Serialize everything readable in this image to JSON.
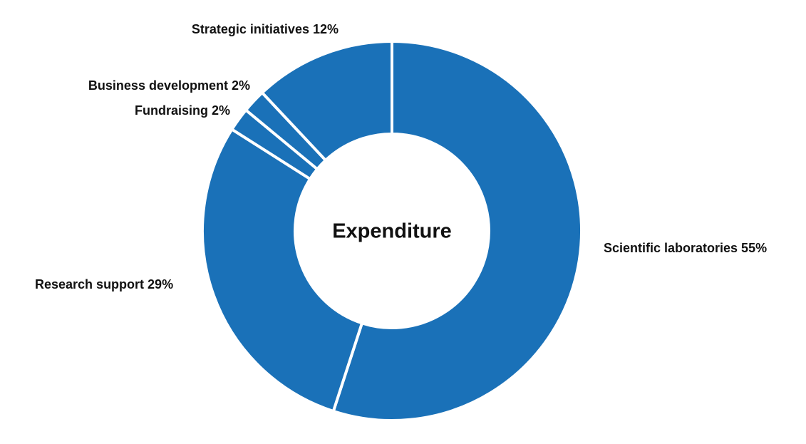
{
  "chart_data": {
    "type": "pie",
    "variant": "donut",
    "center_label": "Expenditure",
    "color": "#1a71b8",
    "legend": "none",
    "slices": [
      {
        "label": "Scientific laboratories 55%",
        "name": "Scientific laboratories",
        "value": 55
      },
      {
        "label": "Research support 29%",
        "name": "Research support",
        "value": 29
      },
      {
        "label": "Fundraising 2%",
        "name": "Fundraising",
        "value": 2
      },
      {
        "label": "Business development 2%",
        "name": "Business development",
        "value": 2
      },
      {
        "label": "Strategic initiatives 12%",
        "name": "Strategic initiatives",
        "value": 12
      }
    ]
  }
}
